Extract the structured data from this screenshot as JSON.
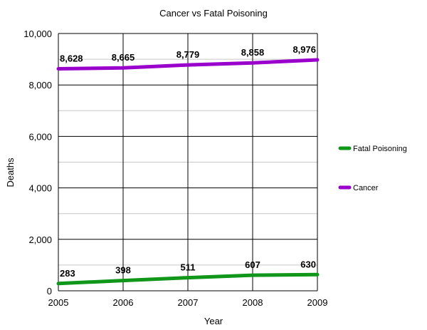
{
  "chart_data": {
    "type": "line",
    "title": "Cancer vs Fatal Poisoning",
    "xlabel": "Year",
    "ylabel": "Deaths",
    "x": [
      2005,
      2006,
      2007,
      2008,
      2009
    ],
    "xlim": [
      2005,
      2009
    ],
    "ylim": [
      0,
      10000
    ],
    "yticks": [
      0,
      2000,
      4000,
      6000,
      8000,
      10000
    ],
    "ytick_labels": [
      "0",
      "2,000",
      "4,000",
      "6,000",
      "8,000",
      "10,000"
    ],
    "xtick_labels": [
      "2005",
      "2006",
      "2007",
      "2008",
      "2009"
    ],
    "grid": true,
    "legend_position": "right",
    "series": [
      {
        "name": "Fatal Poisoning",
        "color": "#109618",
        "values": [
          283,
          398,
          511,
          607,
          630
        ],
        "labels": [
          "283",
          "398",
          "511",
          "607",
          "630"
        ]
      },
      {
        "name": "Cancer",
        "color": "#9900cc",
        "values": [
          8628,
          8665,
          8779,
          8858,
          8976
        ],
        "labels": [
          "8,628",
          "8,665",
          "8,779",
          "8,858",
          "8,976"
        ]
      }
    ]
  }
}
